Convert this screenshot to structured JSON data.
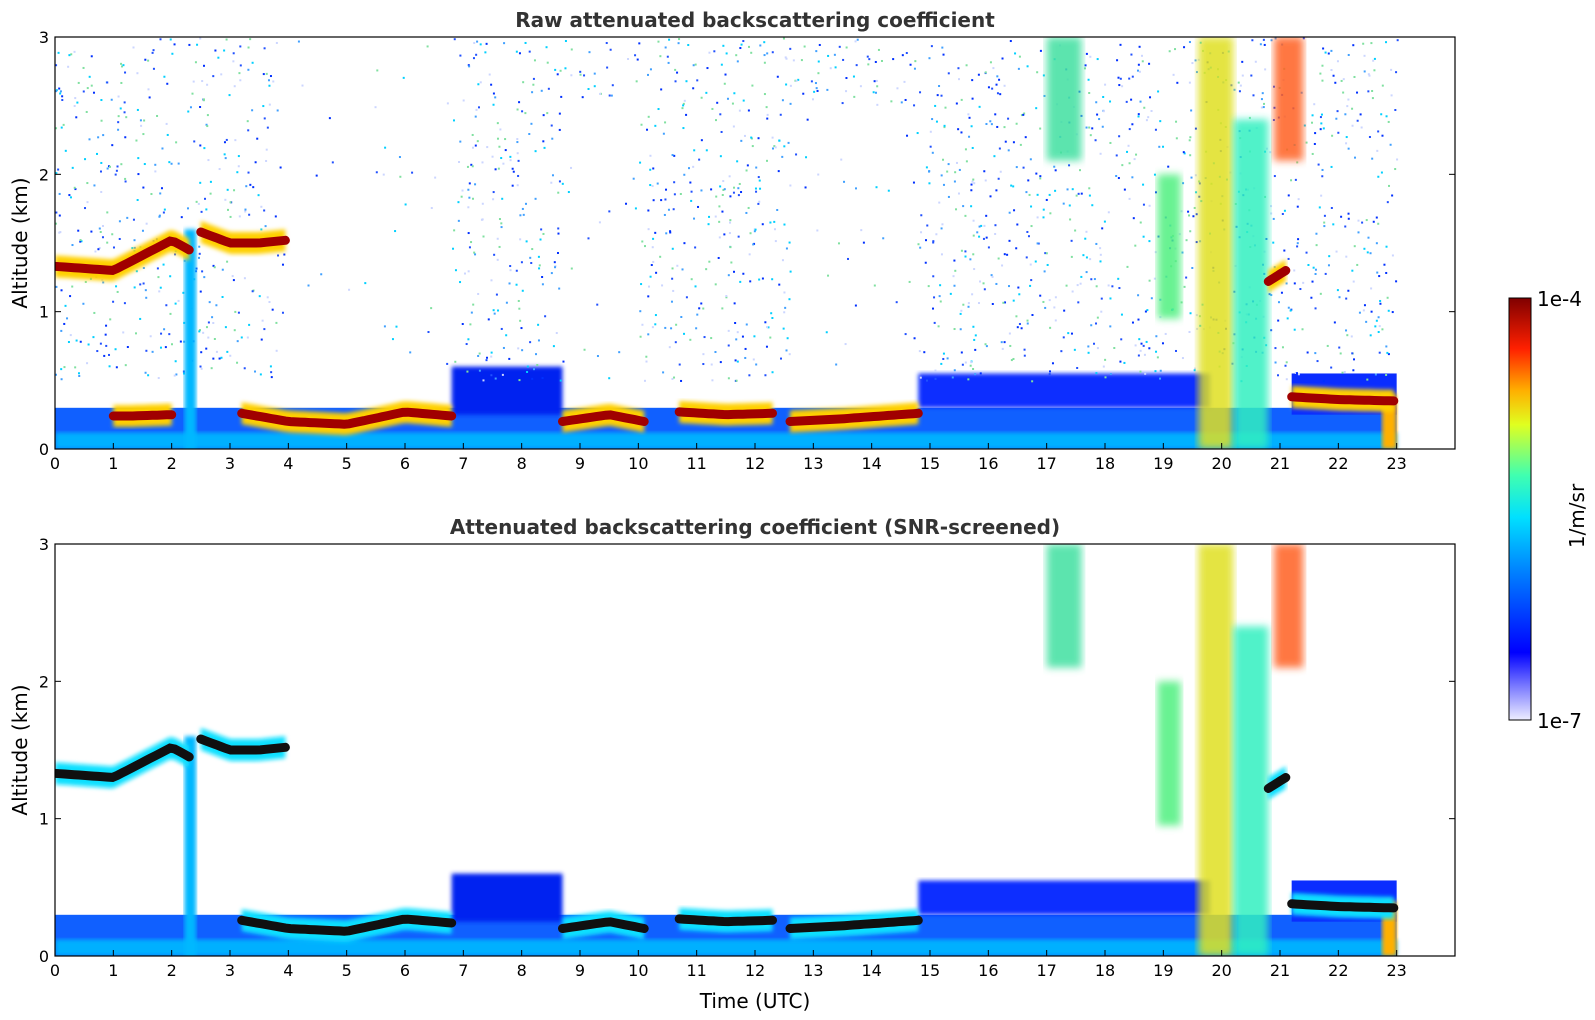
{
  "chart_data": [
    {
      "type": "heatmap",
      "title": "Raw attenuated backscattering coefficient",
      "xlabel": "",
      "ylabel": "Altitude (km)",
      "xlim": [
        0,
        24
      ],
      "ylim": [
        0,
        3
      ],
      "xticks": [
        0,
        1,
        2,
        3,
        4,
        5,
        6,
        7,
        8,
        9,
        10,
        11,
        12,
        13,
        14,
        15,
        16,
        17,
        18,
        19,
        20,
        21,
        22,
        23
      ],
      "yticks": [
        0,
        1,
        2,
        3
      ],
      "data_end_time": 23,
      "cloud_layers": [
        {
          "t": [
            0,
            1,
            2,
            2.3
          ],
          "alt": [
            1.33,
            1.3,
            1.52,
            1.45
          ]
        },
        {
          "t": [
            2.5,
            3,
            3.5,
            3.95
          ],
          "alt": [
            1.58,
            1.5,
            1.5,
            1.52
          ]
        },
        {
          "t": [
            1,
            1.3,
            2
          ],
          "alt": [
            0.24,
            0.24,
            0.25
          ]
        },
        {
          "t": [
            3.2,
            4,
            5,
            6,
            6.8
          ],
          "alt": [
            0.26,
            0.2,
            0.18,
            0.27,
            0.24
          ]
        },
        {
          "t": [
            8.7,
            9.5,
            10.1
          ],
          "alt": [
            0.2,
            0.25,
            0.2
          ]
        },
        {
          "t": [
            10.7,
            11.5,
            12.3
          ],
          "alt": [
            0.27,
            0.25,
            0.26
          ]
        },
        {
          "t": [
            12.6,
            13.5,
            14.8
          ],
          "alt": [
            0.2,
            0.22,
            0.26
          ]
        },
        {
          "t": [
            21.2,
            22,
            22.95
          ],
          "alt": [
            0.38,
            0.36,
            0.35
          ]
        },
        {
          "t": [
            20.8,
            21.1
          ],
          "alt": [
            1.22,
            1.3
          ]
        }
      ]
    },
    {
      "type": "heatmap",
      "title": "Attenuated backscattering coefficient (SNR-screened)",
      "xlabel": "Time (UTC)",
      "ylabel": "Altitude (km)",
      "xlim": [
        0,
        24
      ],
      "ylim": [
        0,
        3
      ],
      "xticks": [
        0,
        1,
        2,
        3,
        4,
        5,
        6,
        7,
        8,
        9,
        10,
        11,
        12,
        13,
        14,
        15,
        16,
        17,
        18,
        19,
        20,
        21,
        22,
        23
      ],
      "yticks": [
        0,
        1,
        2,
        3
      ],
      "data_end_time": 23,
      "cloud_layers": [
        {
          "t": [
            0,
            1,
            2,
            2.3
          ],
          "alt": [
            1.33,
            1.3,
            1.52,
            1.45
          ]
        },
        {
          "t": [
            2.5,
            3,
            3.5,
            3.95
          ],
          "alt": [
            1.58,
            1.5,
            1.5,
            1.52
          ]
        },
        {
          "t": [
            3.2,
            4,
            5,
            6,
            6.8
          ],
          "alt": [
            0.26,
            0.2,
            0.18,
            0.27,
            0.24
          ]
        },
        {
          "t": [
            8.7,
            9.5,
            10.1
          ],
          "alt": [
            0.2,
            0.25,
            0.2
          ]
        },
        {
          "t": [
            10.7,
            11.5,
            12.3
          ],
          "alt": [
            0.27,
            0.25,
            0.26
          ]
        },
        {
          "t": [
            12.6,
            13.5,
            14.8
          ],
          "alt": [
            0.2,
            0.22,
            0.26
          ]
        },
        {
          "t": [
            21.2,
            22,
            22.95
          ],
          "alt": [
            0.38,
            0.36,
            0.35
          ]
        },
        {
          "t": [
            20.8,
            21.1
          ],
          "alt": [
            1.22,
            1.3
          ]
        }
      ]
    }
  ],
  "colorbar": {
    "label": "1/m/sr",
    "min_label": "1e-7",
    "max_label": "1e-4",
    "colormap": "jet",
    "colors": [
      "#f0f0ff",
      "#0000ff",
      "#00a0ff",
      "#00ffff",
      "#80ff80",
      "#ffff00",
      "#ff8000",
      "#ff0000",
      "#800000"
    ]
  }
}
